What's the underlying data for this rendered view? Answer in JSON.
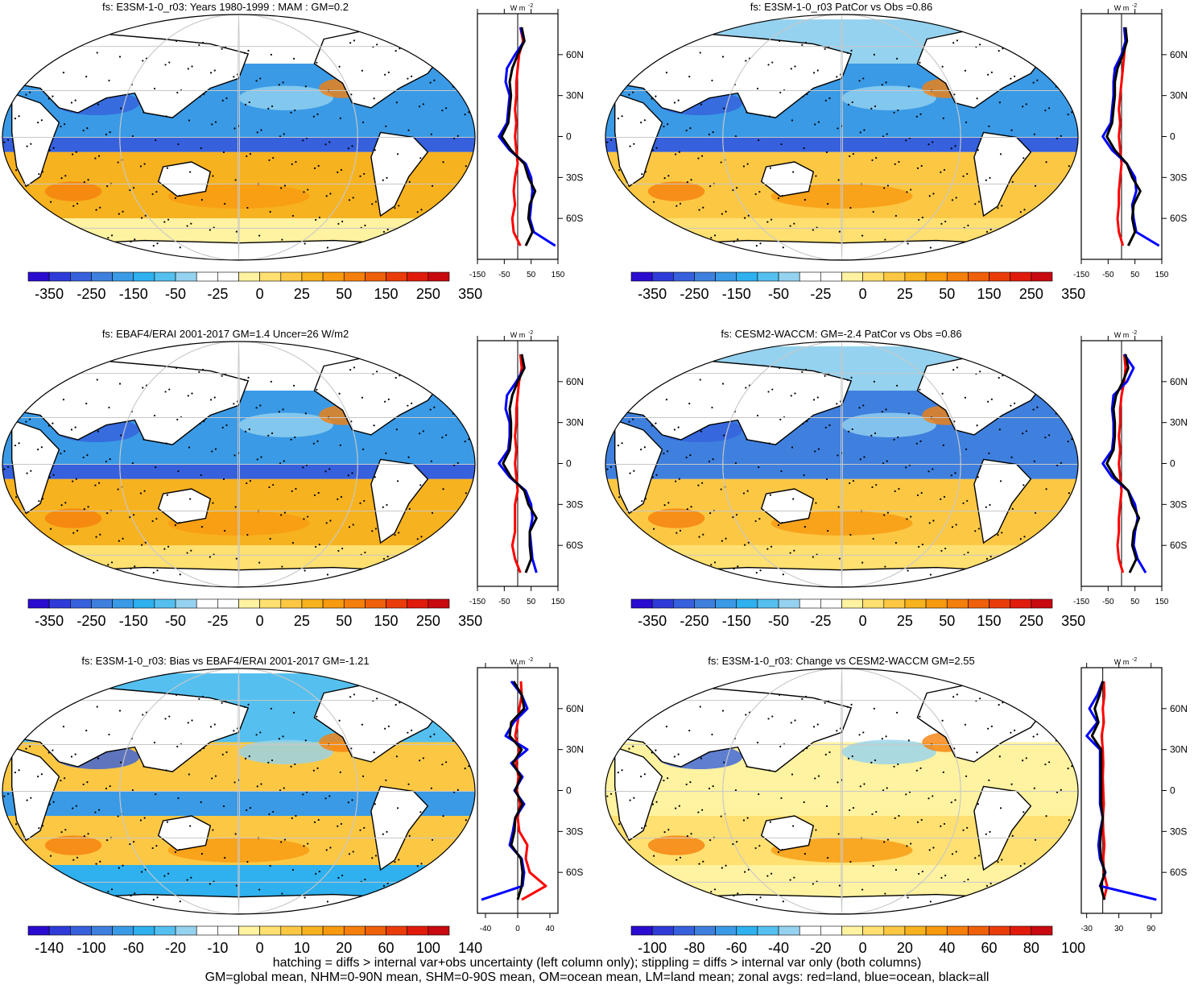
{
  "colors": {
    "scale": [
      "#2a0cd0",
      "#2f3bd8",
      "#3660dc",
      "#3f80de",
      "#3a9ae6",
      "#2fb0ef",
      "#55c0ef",
      "#95d2ef",
      "#ffffff",
      "#ffffff",
      "#fff2a0",
      "#ffe070",
      "#fcc844",
      "#f7b21f",
      "#f79a10",
      "#f57f0c",
      "#ef600a",
      "#ea3c0a",
      "#e01b0c",
      "#c80a10"
    ],
    "land": "#ffffff",
    "grid": "#c8c8c8",
    "land_zonal": "#ff0000",
    "ocean_zonal": "#0000ff",
    "all_zonal": "#000000"
  },
  "captions": {
    "line1": "hatching = diffs > internal var+obs uncertainty (left column only); stippling = diffs > internal var only (both columns)",
    "line2": "GM=global mean, NHM=0-90N mean, SHM=0-90S mean, OM=ocean mean, LM=land mean; zonal avgs: red=land, blue=ocean, black=all"
  },
  "units_label": "W m",
  "units_sup": "-2",
  "chart_data": [
    {
      "type": "heatmap",
      "id": "p1",
      "title": "fs: E3SM-1-0_r03: Years 1980-1999 : MAM : GM=0.2",
      "colorbar_ticks": [
        "-350",
        "-250",
        "-150",
        "-50",
        "-25",
        "0",
        "25",
        "50",
        "150",
        "250",
        "350"
      ],
      "lat_ticks": [
        "60N",
        "30N",
        "0",
        "30S",
        "60S"
      ],
      "zonal_ticks": [
        "-150",
        "-50",
        "50",
        "150"
      ],
      "zonal_range": [
        -150,
        150
      ],
      "zonal": {
        "lat": [
          80,
          70,
          60,
          50,
          40,
          30,
          20,
          10,
          0,
          -10,
          -20,
          -30,
          -40,
          -50,
          -60,
          -70,
          -80
        ],
        "ocean": [
          10,
          25,
          -10,
          -40,
          -45,
          -30,
          -35,
          -40,
          -70,
          -30,
          30,
          50,
          55,
          50,
          45,
          60,
          140
        ],
        "land": [
          10,
          20,
          5,
          0,
          -5,
          -5,
          -10,
          -5,
          -10,
          -5,
          0,
          -10,
          -15,
          -10,
          -20,
          -15,
          10
        ],
        "all": [
          15,
          25,
          0,
          -20,
          -30,
          -25,
          -30,
          -35,
          -60,
          -25,
          25,
          40,
          65,
          45,
          40,
          55,
          30
        ]
      }
    },
    {
      "type": "heatmap",
      "id": "p2",
      "title": "fs: E3SM-1-0_r03 PatCor vs Obs =0.86",
      "colorbar_ticks": [
        "-350",
        "-250",
        "-150",
        "-50",
        "-25",
        "0",
        "25",
        "50",
        "150",
        "250",
        "350"
      ],
      "lat_ticks": [
        "60N",
        "30N",
        "0",
        "30S",
        "60S"
      ],
      "zonal_ticks": [
        "-150",
        "-50",
        "50",
        "150"
      ],
      "zonal_range": [
        -150,
        150
      ],
      "zonal": {
        "lat": [
          80,
          70,
          60,
          50,
          40,
          30,
          20,
          10,
          0,
          -10,
          -20,
          -30,
          -40,
          -50,
          -60,
          -70,
          -80
        ],
        "ocean": [
          10,
          15,
          0,
          -25,
          -30,
          -30,
          -35,
          -40,
          -70,
          -35,
          20,
          50,
          55,
          40,
          45,
          55,
          140
        ],
        "land": [
          10,
          15,
          10,
          5,
          0,
          -5,
          -10,
          -5,
          -10,
          -5,
          0,
          -5,
          -10,
          -10,
          -15,
          -10,
          5
        ],
        "all": [
          15,
          20,
          5,
          -15,
          -25,
          -25,
          -30,
          -35,
          -55,
          -25,
          20,
          40,
          70,
          45,
          40,
          50,
          25
        ]
      }
    },
    {
      "type": "heatmap",
      "id": "p3",
      "title": "fs: EBAF4/ERAI 2001-2017 GM=1.4 Uncer=26 W/m2",
      "colorbar_ticks": [
        "-350",
        "-250",
        "-150",
        "-50",
        "-25",
        "0",
        "25",
        "50",
        "150",
        "250",
        "350"
      ],
      "lat_ticks": [
        "60N",
        "30N",
        "0",
        "30S",
        "60S"
      ],
      "zonal_ticks": [
        "-150",
        "-50",
        "50",
        "150"
      ],
      "zonal_range": [
        -150,
        150
      ],
      "zonal": {
        "lat": [
          80,
          70,
          60,
          50,
          40,
          30,
          20,
          10,
          0,
          -10,
          -20,
          -30,
          -40,
          -50,
          -60,
          -70,
          -80
        ],
        "ocean": [
          15,
          25,
          -5,
          -40,
          -45,
          -30,
          -30,
          -35,
          -70,
          -30,
          30,
          50,
          55,
          45,
          50,
          55,
          70
        ],
        "land": [
          10,
          15,
          5,
          0,
          -5,
          -5,
          -10,
          -5,
          -10,
          -5,
          0,
          -10,
          -10,
          -10,
          -20,
          -10,
          10
        ],
        "all": [
          15,
          25,
          0,
          -20,
          -30,
          -25,
          -25,
          -30,
          -55,
          -25,
          25,
          40,
          70,
          45,
          45,
          50,
          30
        ]
      }
    },
    {
      "type": "heatmap",
      "id": "p4",
      "title": "fs: CESM2-WACCM: GM=-2.4 PatCor vs Obs =0.86",
      "colorbar_ticks": [
        "-350",
        "-250",
        "-150",
        "-50",
        "-25",
        "0",
        "25",
        "50",
        "150",
        "250",
        "350"
      ],
      "lat_ticks": [
        "60N",
        "30N",
        "0",
        "30S",
        "60S"
      ],
      "zonal_ticks": [
        "-150",
        "-50",
        "50",
        "150"
      ],
      "zonal_range": [
        -150,
        150
      ],
      "zonal": {
        "lat": [
          80,
          70,
          60,
          50,
          40,
          30,
          20,
          10,
          0,
          -10,
          -20,
          -30,
          -40,
          -50,
          -60,
          -70,
          -80
        ],
        "ocean": [
          10,
          45,
          20,
          -30,
          -35,
          -30,
          -30,
          -35,
          -70,
          -35,
          25,
          50,
          60,
          50,
          45,
          60,
          90
        ],
        "land": [
          10,
          15,
          10,
          0,
          -5,
          -5,
          -10,
          -5,
          -10,
          -5,
          0,
          -5,
          -10,
          -10,
          -15,
          -10,
          5
        ],
        "all": [
          15,
          25,
          5,
          -20,
          -30,
          -25,
          -25,
          -30,
          -55,
          -25,
          25,
          40,
          65,
          45,
          40,
          55,
          30
        ]
      }
    },
    {
      "type": "heatmap",
      "id": "p5",
      "title": "fs: E3SM-1-0_r03: Bias vs EBAF4/ERAI 2001-2017 GM=-1.21",
      "colorbar_ticks": [
        "-140",
        "-100",
        "-60",
        "-20",
        "-10",
        "0",
        "10",
        "20",
        "60",
        "100",
        "140"
      ],
      "lat_ticks": [
        "60N",
        "30N",
        "0",
        "30S",
        "60S"
      ],
      "zonal_ticks": [
        "-40",
        "0",
        "40"
      ],
      "zonal_range": [
        -50,
        50
      ],
      "zonal": {
        "lat": [
          80,
          70,
          60,
          50,
          40,
          30,
          20,
          10,
          0,
          -10,
          -20,
          -30,
          -40,
          -50,
          -60,
          -70,
          -80
        ],
        "ocean": [
          -8,
          5,
          12,
          -5,
          -15,
          12,
          -8,
          6,
          -4,
          8,
          -3,
          -6,
          -10,
          5,
          8,
          6,
          -45
        ],
        "land": [
          4,
          5,
          2,
          0,
          -3,
          2,
          -2,
          1,
          -1,
          3,
          0,
          2,
          12,
          10,
          15,
          35,
          5
        ],
        "all": [
          -5,
          5,
          8,
          -8,
          -10,
          5,
          -6,
          4,
          -3,
          6,
          -3,
          -4,
          -8,
          4,
          6,
          5,
          0
        ]
      }
    },
    {
      "type": "heatmap",
      "id": "p6",
      "title": "fs: E3SM-1-0_r03: Change vs CESM2-WACCM GM=2.55",
      "colorbar_ticks": [
        "-100",
        "-80",
        "-60",
        "-40",
        "-20",
        "0",
        "20",
        "40",
        "60",
        "80",
        "100"
      ],
      "lat_ticks": [
        "60N",
        "30N",
        "0",
        "30S",
        "60S"
      ],
      "zonal_ticks": [
        "-30",
        "30",
        "90"
      ],
      "zonal_range": [
        -40,
        110
      ],
      "zonal": {
        "lat": [
          80,
          70,
          60,
          50,
          40,
          30,
          20,
          10,
          0,
          -10,
          -20,
          -30,
          -40,
          -50,
          -60,
          -70,
          -80
        ],
        "ocean": [
          0,
          -10,
          -25,
          -10,
          -30,
          -5,
          -5,
          -5,
          -5,
          -5,
          0,
          -5,
          -8,
          -5,
          5,
          -5,
          100
        ],
        "land": [
          2,
          3,
          0,
          2,
          -2,
          0,
          1,
          0,
          1,
          2,
          0,
          1,
          3,
          1,
          2,
          8,
          2
        ],
        "all": [
          0,
          -6,
          -15,
          -8,
          -20,
          -3,
          -3,
          -3,
          -3,
          -3,
          0,
          -3,
          -5,
          -3,
          4,
          -4,
          3
        ]
      }
    }
  ]
}
